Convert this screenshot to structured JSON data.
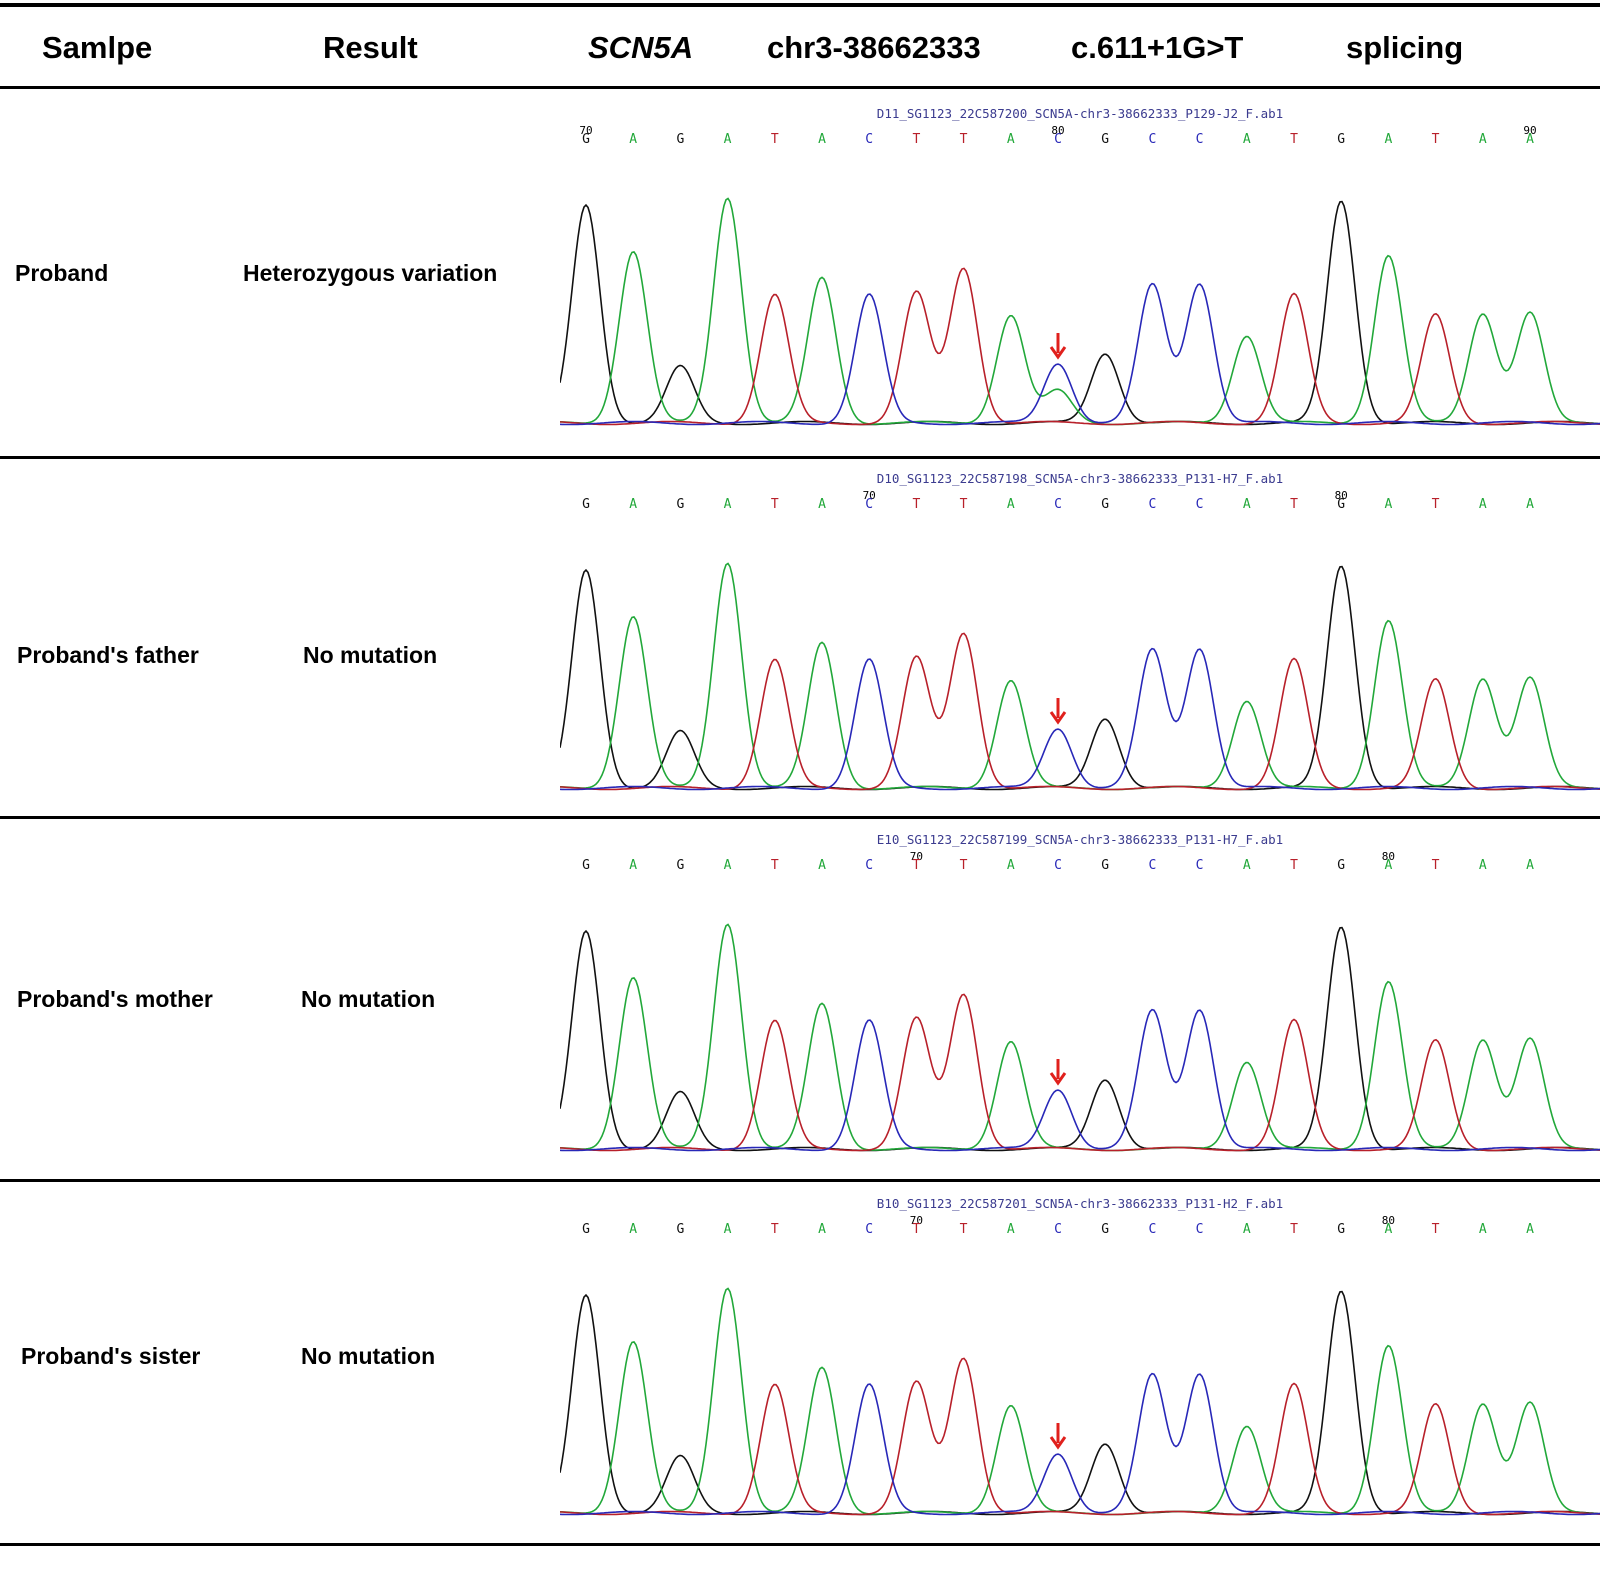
{
  "colors": {
    "A": "#22a83a",
    "C": "#2828b8",
    "G": "#111111",
    "T": "#b8202a",
    "arrow": "#e0201c"
  },
  "header": {
    "sample": "Samlpe",
    "result": "Result",
    "gene": "SCN5A",
    "locus": "chr3-38662333",
    "change": "c.611+1G>T",
    "type": "splicing"
  },
  "rows": [
    {
      "sample": "Proband",
      "result": "Heterozygous variation",
      "file": "D11_SG1123_22C587200_SCN5A-chr3-38662333_P129-J2_F.ab1",
      "bases": [
        "G",
        "A",
        "G",
        "A",
        "T",
        "A",
        "C",
        "T",
        "T",
        "A",
        "C",
        "G",
        "C",
        "C",
        "A",
        "T",
        "G",
        "A",
        "T",
        "A",
        "A"
      ],
      "positions": [
        {
          "label": "70",
          "index": 0
        },
        {
          "label": "80",
          "index": 10
        },
        {
          "label": "90",
          "index": 20
        }
      ],
      "mutation_index": 10
    },
    {
      "sample": "Proband's father",
      "result": "No mutation",
      "file": "D10_SG1123_22C587198_SCN5A-chr3-38662333_P131-H7_F.ab1",
      "bases": [
        "G",
        "A",
        "G",
        "A",
        "T",
        "A",
        "C",
        "T",
        "T",
        "A",
        "C",
        "G",
        "C",
        "C",
        "A",
        "T",
        "G",
        "A",
        "T",
        "A",
        "A"
      ],
      "positions": [
        {
          "label": "70",
          "index": 6
        },
        {
          "label": "80",
          "index": 16
        }
      ],
      "mutation_index": 10
    },
    {
      "sample": "Proband's mother",
      "result": "No mutation",
      "file": "E10_SG1123_22C587199_SCN5A-chr3-38662333_P131-H7_F.ab1",
      "bases": [
        "G",
        "A",
        "G",
        "A",
        "T",
        "A",
        "C",
        "T",
        "T",
        "A",
        "C",
        "G",
        "C",
        "C",
        "A",
        "T",
        "G",
        "A",
        "T",
        "A",
        "A"
      ],
      "positions": [
        {
          "label": "70",
          "index": 7
        },
        {
          "label": "80",
          "index": 17
        }
      ],
      "mutation_index": 10
    },
    {
      "sample": "Proband's sister",
      "result": "No mutation",
      "file": "B10_SG1123_22C587201_SCN5A-chr3-38662333_P131-H2_F.ab1",
      "bases": [
        "G",
        "A",
        "G",
        "A",
        "T",
        "A",
        "C",
        "T",
        "T",
        "A",
        "C",
        "G",
        "C",
        "C",
        "A",
        "T",
        "G",
        "A",
        "T",
        "A",
        "A"
      ],
      "positions": [
        {
          "label": "70",
          "index": 7
        },
        {
          "label": "80",
          "index": 17
        }
      ],
      "mutation_index": 10
    }
  ]
}
